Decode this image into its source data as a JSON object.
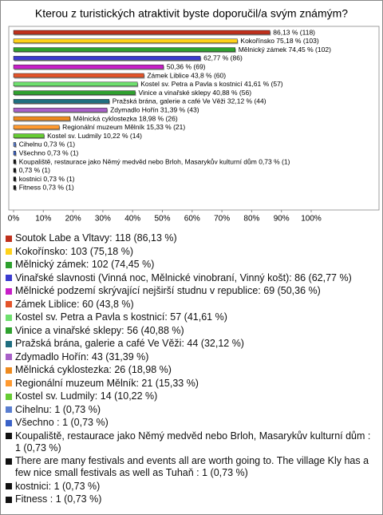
{
  "chart_data": {
    "type": "barh",
    "title": "Kterou z turistických atraktivit byste doporučil/a svým známým?",
    "categories": [
      "Soutok Labe a Vltavy",
      "Kokořínsko",
      "Mělnický zámek",
      "Vinařské slavnosti (Vinná noc, Mělnické vinobraní, Vinný košt)",
      "Mělnické podzemí skrývající nejširší studnu v republice",
      "Zámek Liblice",
      "Kostel sv. Petra a Pavla s kostnicí",
      "Vinice a vinařské sklepy",
      "Pražská brána, galerie a café Ve Věži",
      "Zdymadlo Hořín",
      "Mělnická cyklostezka",
      "Regionální muzeum Mělník",
      "Kostel sv. Ludmily",
      "Cihelnu",
      "Všechno",
      "Koupaliště, restaurace jako Němý medvěd nebo Brloh, Masarykův kulturní dům",
      "There are many festivals and events all are worth going to. The village Kly has a few nice small festivals as well as Tuhaň",
      "kostnici",
      "Fitness"
    ],
    "values": [
      86.13,
      75.18,
      74.45,
      62.77,
      50.36,
      43.8,
      41.61,
      40.88,
      32.12,
      31.39,
      18.98,
      15.33,
      10.22,
      0.73,
      0.73,
      0.73,
      0.73,
      0.73,
      0.73
    ],
    "value_labels": [
      "86,13 % (118)",
      "Kokořínsko 75,18 % (103)",
      "Mělnický zámek 74,45 % (102)",
      "62,77 % (86)",
      "50,36 % (69)",
      "Zámek Liblice 43,8 % (60)",
      "Kostel sv. Petra a Pavla s kostnicí 41,61 % (57)",
      "Vinice a vinařské sklepy 40,88 % (56)",
      "Pražská brána, galerie a café Ve Věži 32,12 % (44)",
      "Zdymadlo Hořín 31,39 % (43)",
      "Mělnická cyklostezka 18,98 % (26)",
      "Regionální muzeum Mělník 15,33 % (21)",
      "Kostel sv. Ludmily 10,22 % (14)",
      "Cihelnu 0,73 % (1)",
      "Všechno 0,73 % (1)",
      "Koupaliště, restaurace jako Němý medvěd nebo Brloh, Masarykův kulturní dům 0,73 % (1)",
      "0,73 % (1)",
      "kostnici 0,73 % (1)",
      "Fitness 0,73 % (1)"
    ],
    "legend_labels": [
      "Soutok Labe a Vltavy: 118 (86,13 %)",
      "Kokořínsko: 103 (75,18 %)",
      "Mělnický zámek: 102 (74,45 %)",
      "Vinařské slavnosti (Vinná noc, Mělnické vinobraní, Vinný košt): 86 (62,77 %)",
      "Mělnické podzemí skrývající nejširší studnu v republice: 69 (50,36 %)",
      "Zámek Liblice: 60 (43,8 %)",
      "Kostel sv. Petra a Pavla s kostnicí: 57 (41,61 %)",
      "Vinice a vinařské sklepy: 56 (40,88 %)",
      "Pražská brána, galerie a café Ve Věži: 44 (32,12 %)",
      "Zdymadlo Hořín: 43 (31,39 %)",
      "Mělnická cyklostezka: 26 (18,98 %)",
      "Regionální muzeum Mělník: 21 (15,33 %)",
      "Kostel sv. Ludmily: 14 (10,22 %)",
      "Cihelnu: 1 (0,73 %)",
      "Všechno : 1 (0,73 %)",
      "Koupaliště, restaurace jako Němý medvěd nebo Brloh, Masarykův kulturní dům : 1 (0,73 %)",
      "There are many festivals and events all are worth going to. The village Kly has a few nice small festivals as well as Tuhaň : 1 (0,73 %)",
      "kostnici: 1 (0,73 %)",
      "Fitness : 1 (0,73 %)"
    ],
    "colors": [
      "#c0301c",
      "#ffd21a",
      "#2ea12e",
      "#3b3bd0",
      "#c81ec8",
      "#e4542a",
      "#6ee06e",
      "#2ea12e",
      "#1f6e80",
      "#a860c8",
      "#ee8a1e",
      "#ff9a30",
      "#66cc33",
      "#5a7ed0",
      "#3a62c8",
      "#111111",
      "#111111",
      "#111111",
      "#111111"
    ],
    "xlim": [
      0,
      100
    ],
    "xticks": [
      {
        "value": 0,
        "label": "0%"
      },
      {
        "value": 10,
        "label": "10%"
      },
      {
        "value": 20,
        "label": "20%"
      },
      {
        "value": 30,
        "label": "30%"
      },
      {
        "value": 40,
        "label": "40%"
      },
      {
        "value": 50,
        "label": "50%"
      },
      {
        "value": 60,
        "label": "60%"
      },
      {
        "value": 70,
        "label": "70%"
      },
      {
        "value": 80,
        "label": "80%"
      },
      {
        "value": 90,
        "label": "90%"
      },
      {
        "value": 100,
        "label": "100%"
      }
    ]
  }
}
